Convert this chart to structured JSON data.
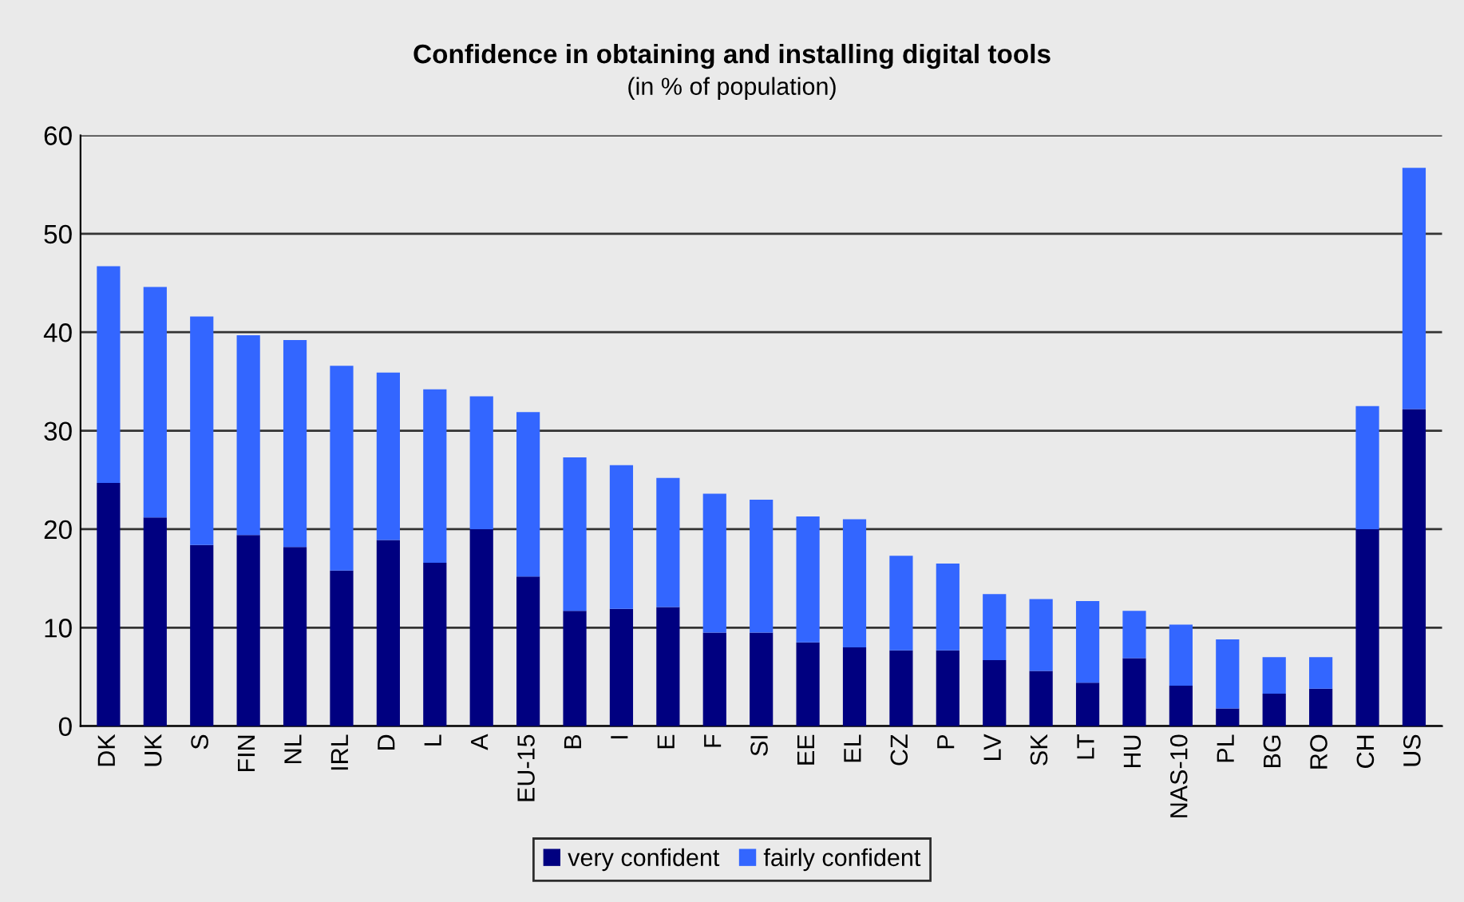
{
  "chart_data": {
    "type": "bar",
    "stacked": true,
    "title": "Confidence in obtaining and installing digital tools",
    "subtitle": "(in % of population)",
    "categories": [
      "DK",
      "UK",
      "S",
      "FIN",
      "NL",
      "IRL",
      "D",
      "L",
      "A",
      "EU-15",
      "B",
      "I",
      "E",
      "F",
      "SI",
      "EE",
      "EL",
      "CZ",
      "P",
      "LV",
      "SK",
      "LT",
      "HU",
      "NAS-10",
      "PL",
      "BG",
      "RO",
      "CH",
      "US"
    ],
    "series": [
      {
        "name": "very confident",
        "color": "#000080",
        "values": [
          24.7,
          21.2,
          18.4,
          19.4,
          18.2,
          15.8,
          18.9,
          16.6,
          20.0,
          15.2,
          11.7,
          11.9,
          12.1,
          9.5,
          9.5,
          8.5,
          8.0,
          7.7,
          7.7,
          6.7,
          5.6,
          4.4,
          6.9,
          4.1,
          1.8,
          3.3,
          3.8,
          20.0,
          32.2
        ]
      },
      {
        "name": "fairly confident",
        "color": "#3366ff",
        "values": [
          22.0,
          23.4,
          23.2,
          20.3,
          21.0,
          20.8,
          17.0,
          17.6,
          13.5,
          16.7,
          15.6,
          14.6,
          13.1,
          14.1,
          13.5,
          12.8,
          13.0,
          9.6,
          8.8,
          6.7,
          7.3,
          8.3,
          4.8,
          6.2,
          7.0,
          3.7,
          3.2,
          12.5,
          24.5
        ]
      }
    ],
    "ylim": [
      0,
      60
    ],
    "yticks": [
      0,
      10,
      20,
      30,
      40,
      50,
      60
    ],
    "grid": "y",
    "legend": "bottom"
  }
}
